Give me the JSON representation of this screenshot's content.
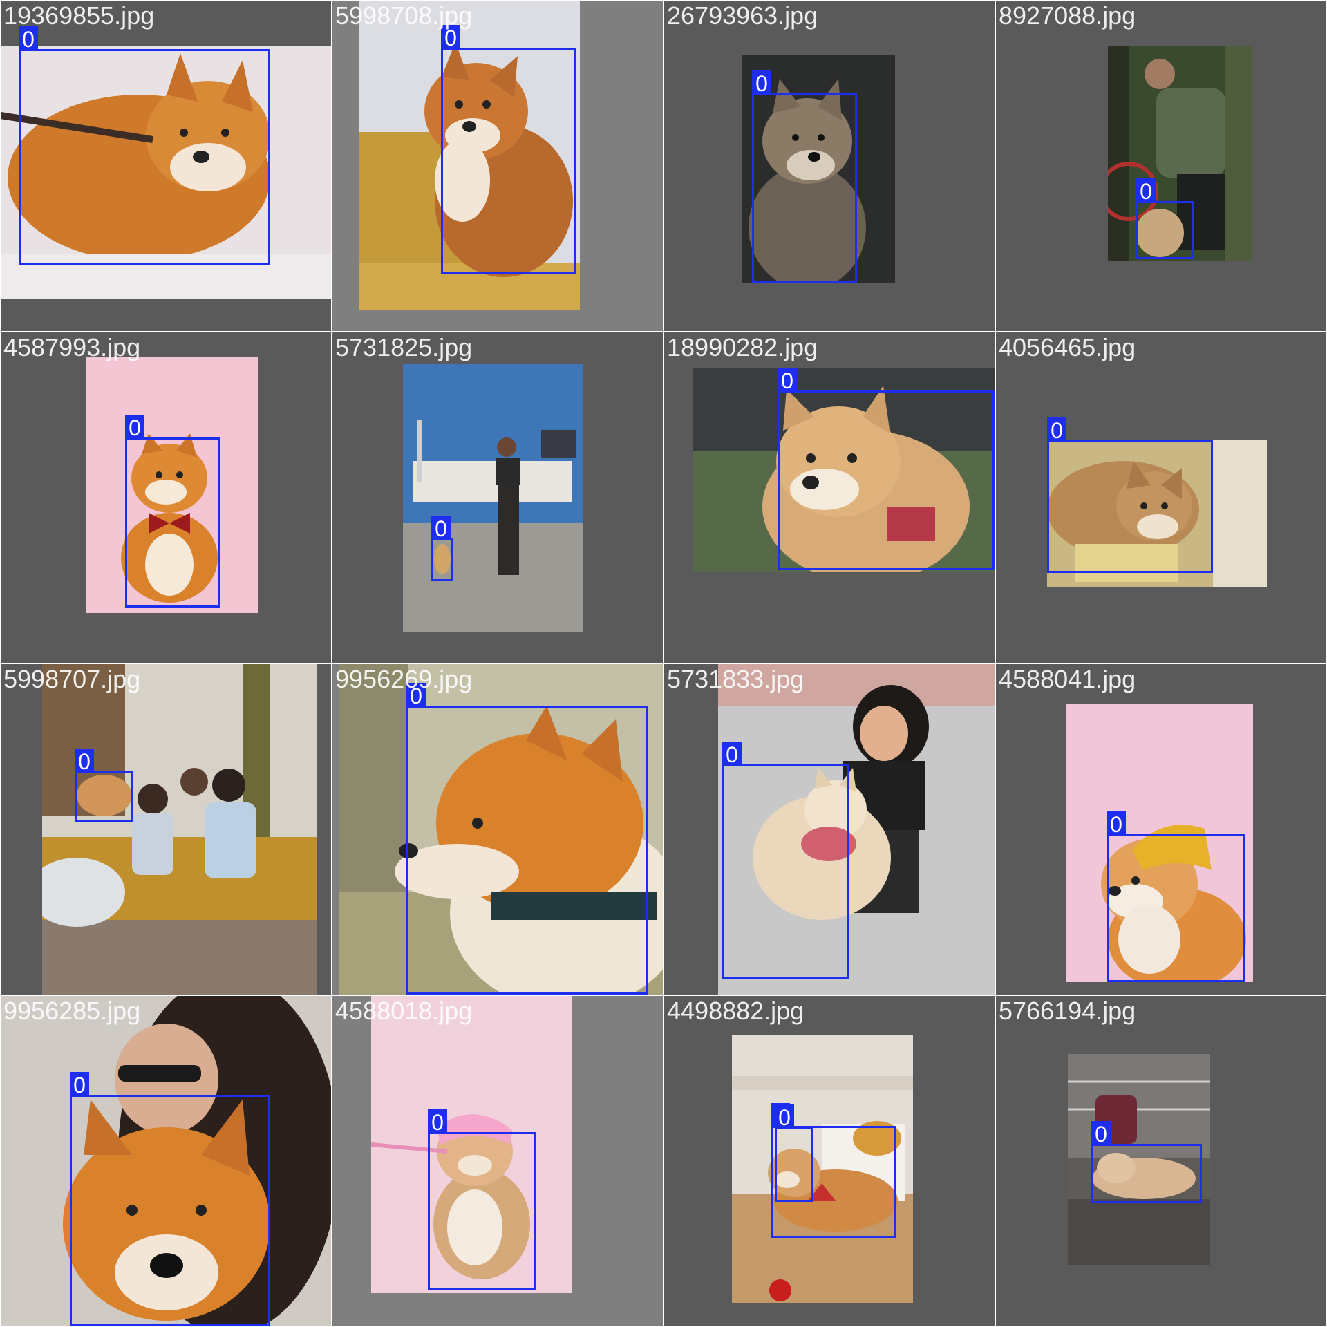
{
  "detection_class_label": "0",
  "tiles": [
    {
      "filename": "19369855.jpg",
      "boxes": 1
    },
    {
      "filename": "5998708.jpg",
      "boxes": 1
    },
    {
      "filename": "26793963.jpg",
      "boxes": 1
    },
    {
      "filename": "8927088.jpg",
      "boxes": 1
    },
    {
      "filename": "4587993.jpg",
      "boxes": 1
    },
    {
      "filename": "5731825.jpg",
      "boxes": 1
    },
    {
      "filename": "18990282.jpg",
      "boxes": 1
    },
    {
      "filename": "4056465.jpg",
      "boxes": 1
    },
    {
      "filename": "5998707.jpg",
      "boxes": 1
    },
    {
      "filename": "9956269.jpg",
      "boxes": 1
    },
    {
      "filename": "5731833.jpg",
      "boxes": 1
    },
    {
      "filename": "4588041.jpg",
      "boxes": 1
    },
    {
      "filename": "9956285.jpg",
      "boxes": 1
    },
    {
      "filename": "4588018.jpg",
      "boxes": 1
    },
    {
      "filename": "4498882.jpg",
      "boxes": 2
    },
    {
      "filename": "5766194.jpg",
      "boxes": 1
    }
  ],
  "colors": {
    "box": "#1e2ef0",
    "tile_bg_dark": "#5a5a5a",
    "tile_bg_light": "#7f7f7f",
    "shiba_orange": "#d9822b",
    "shiba_cream": "#f2e4cf"
  }
}
